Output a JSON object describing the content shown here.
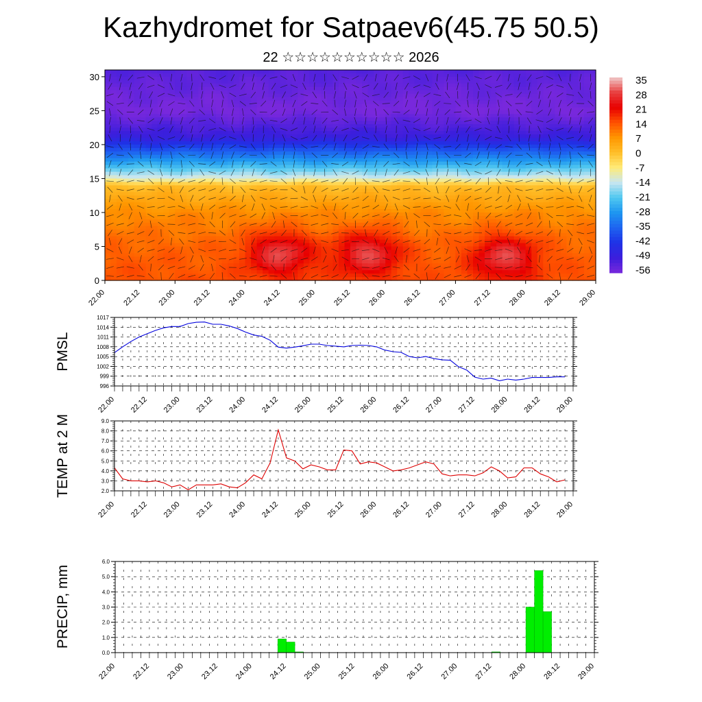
{
  "title": "Kazhydromet for Satpaev6(45.75 50.5)",
  "subtitle": "22 ☆☆☆☆☆☆☆☆☆☆ 2026",
  "time_labels": [
    "22.00",
    "22.12",
    "23.00",
    "23.12",
    "24.00",
    "24.12",
    "25.00",
    "25.12",
    "26.00",
    "26.12",
    "27.00",
    "27.12",
    "28.00",
    "28.12",
    "29.00"
  ],
  "chart_data": [
    {
      "type": "heatmap",
      "title": "",
      "xlabel": "",
      "ylabel": "",
      "y_ticks": [
        0,
        5,
        10,
        15,
        20,
        25,
        30
      ],
      "ylim": [
        0,
        31
      ],
      "colorbar": {
        "labels": [
          "35",
          "28",
          "21",
          "14",
          "7",
          "0",
          "-7",
          "-14",
          "-21",
          "-28",
          "-35",
          "-42",
          "-49",
          "-56"
        ],
        "colors": [
          "#f0c8c8",
          "#e84040",
          "#e80000",
          "#ff5000",
          "#ff9600",
          "#ffbe28",
          "#ffeb78",
          "#c8e6f0",
          "#50c8f0",
          "#1e96f0",
          "#1e64f0",
          "#1e32e6",
          "#3c1edc",
          "#7828dc"
        ]
      },
      "temperature_profile": [
        {
          "height": 0,
          "value": 14
        },
        {
          "height": 5,
          "value": 12
        },
        {
          "height": 10,
          "value": 8
        },
        {
          "height": 14,
          "value": 0
        },
        {
          "height": 15,
          "value": -12
        },
        {
          "height": 18,
          "value": -30
        },
        {
          "height": 21,
          "value": -48
        },
        {
          "height": 25,
          "value": -56
        },
        {
          "height": 31,
          "value": -52
        }
      ],
      "warm_cores": [
        {
          "time": 24.5,
          "height": 4,
          "value": 28
        },
        {
          "time": 25.75,
          "height": 4,
          "value": 28
        },
        {
          "time": 27.7,
          "height": 3.5,
          "value": 28
        }
      ],
      "grid": false
    },
    {
      "type": "line",
      "ylabel": "PMSL",
      "ylim": [
        996,
        1017
      ],
      "y_ticks": [
        "996",
        "999",
        "1002",
        "1005",
        "1008",
        "1011",
        "1014",
        "1017"
      ],
      "color": "#0000dd",
      "grid": true,
      "x": [
        22.0,
        22.125,
        22.25,
        22.375,
        22.5,
        22.625,
        22.75,
        22.875,
        23.0,
        23.125,
        23.25,
        23.375,
        23.5,
        23.625,
        23.75,
        23.875,
        24.0,
        24.125,
        24.25,
        24.375,
        24.5,
        24.625,
        24.75,
        24.875,
        25.0,
        25.125,
        25.25,
        25.375,
        25.5,
        25.625,
        25.75,
        25.875,
        26.0,
        26.125,
        26.25,
        26.375,
        26.5,
        26.625,
        26.75,
        26.875,
        27.0,
        27.125,
        27.25,
        27.375,
        27.5,
        27.625,
        27.75,
        27.875,
        28.0,
        28.125,
        28.25,
        28.375,
        28.5,
        28.625,
        28.75,
        28.875
      ],
      "values": [
        1006.2,
        1008,
        1009.6,
        1011,
        1012,
        1013,
        1013.8,
        1014.2,
        1014.2,
        1015.1,
        1015.5,
        1015.6,
        1014.9,
        1014.9,
        1014.4,
        1013.6,
        1012.5,
        1011.6,
        1011.2,
        1010.0,
        1007.9,
        1007.6,
        1007.9,
        1008.3,
        1008.8,
        1008.8,
        1008.4,
        1008.2,
        1008.0,
        1008.4,
        1008.5,
        1008.4,
        1008.0,
        1007.0,
        1006.5,
        1006.3,
        1005.0,
        1004.6,
        1005.0,
        1004.4,
        1004.0,
        1003.9,
        1001.9,
        1000.9,
        998.7,
        998.1,
        998.4,
        997.6,
        998.1,
        997.8,
        998.1,
        998.6,
        998.6,
        998.6,
        998.8,
        998.8
      ]
    },
    {
      "type": "line",
      "ylabel": "TEMP at 2 M",
      "ylim": [
        2.0,
        9.0
      ],
      "y_ticks": [
        "2.0",
        "3.0",
        "4.0",
        "5.0",
        "6.0",
        "7.0",
        "8.0",
        "9.0"
      ],
      "color": "#dd0000",
      "grid": true,
      "x": [
        22.0,
        22.125,
        22.25,
        22.375,
        22.5,
        22.625,
        22.75,
        22.875,
        23.0,
        23.125,
        23.25,
        23.375,
        23.5,
        23.625,
        23.75,
        23.875,
        24.0,
        24.125,
        24.25,
        24.375,
        24.5,
        24.625,
        24.75,
        24.875,
        25.0,
        25.125,
        25.25,
        25.375,
        25.5,
        25.625,
        25.75,
        25.875,
        26.0,
        26.125,
        26.25,
        26.375,
        26.5,
        26.625,
        26.75,
        26.875,
        27.0,
        27.125,
        27.25,
        27.375,
        27.5,
        27.625,
        27.75,
        27.875,
        28.0,
        28.125,
        28.25,
        28.375,
        28.5,
        28.625,
        28.75,
        28.875
      ],
      "values": [
        4.3,
        3.2,
        3.0,
        3.0,
        2.9,
        3.0,
        2.8,
        2.4,
        2.6,
        2.1,
        2.6,
        2.6,
        2.6,
        2.7,
        2.4,
        2.3,
        2.8,
        3.6,
        3.2,
        4.8,
        8.1,
        5.3,
        5.0,
        4.2,
        4.6,
        4.4,
        4.1,
        4.1,
        6.1,
        6.0,
        4.7,
        4.9,
        4.8,
        4.4,
        4.0,
        4.1,
        4.3,
        4.6,
        4.9,
        4.7,
        3.7,
        3.5,
        3.6,
        3.6,
        3.5,
        3.8,
        4.4,
        4.0,
        3.3,
        3.4,
        4.3,
        4.3,
        3.7,
        3.4,
        2.9,
        3.1
      ]
    },
    {
      "type": "bar",
      "ylabel": "PRECIP, mm",
      "ylim": [
        0.0,
        6.0
      ],
      "y_ticks": [
        "0.0",
        "1.0",
        "2.0",
        "3.0",
        "4.0",
        "5.0",
        "6.0"
      ],
      "color": "#00ee00",
      "grid": true,
      "bins": [
        {
          "start": 24.375,
          "value": 0.9
        },
        {
          "start": 24.5,
          "value": 0.7
        },
        {
          "start": 24.625,
          "value": 0.05
        },
        {
          "start": 27.5,
          "value": 0.05
        },
        {
          "start": 28.0,
          "value": 3.0
        },
        {
          "start": 28.125,
          "value": 5.4
        },
        {
          "start": 28.25,
          "value": 2.7
        }
      ]
    }
  ]
}
